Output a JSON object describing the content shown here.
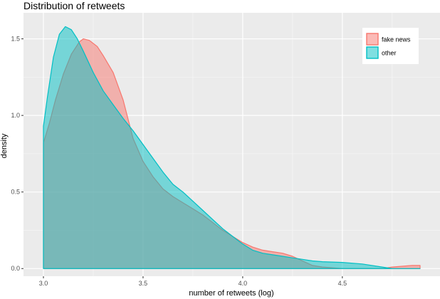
{
  "chart_data": {
    "type": "area",
    "subtype": "density",
    "title": "Distribution of retweets",
    "xlabel": "number of retweets (log)",
    "ylabel": "density",
    "xlim": [
      2.9,
      4.99
    ],
    "ylim": [
      -0.05,
      1.67
    ],
    "x_ticks": [
      3.0,
      3.5,
      4.0,
      4.5
    ],
    "x_tick_labels": [
      "3.0",
      "3.5",
      "4.0",
      "4.5"
    ],
    "y_ticks": [
      0.0,
      0.5,
      1.0,
      1.5
    ],
    "y_tick_labels": [
      "0.0",
      "0.5",
      "1.0",
      "1.5"
    ],
    "grid": true,
    "legend_position": "top-right-inside",
    "series": [
      {
        "name": "fake news",
        "color": "#F8766D",
        "fill": "#F8766D",
        "fill_opacity": 0.5,
        "x": [
          3.0,
          3.03,
          3.06,
          3.1,
          3.14,
          3.18,
          3.2,
          3.23,
          3.27,
          3.3,
          3.35,
          3.4,
          3.45,
          3.5,
          3.55,
          3.6,
          3.65,
          3.7,
          3.75,
          3.8,
          3.85,
          3.9,
          3.95,
          4.0,
          4.05,
          4.1,
          4.15,
          4.2,
          4.25,
          4.3,
          4.35,
          4.4,
          4.5,
          4.6,
          4.7,
          4.75,
          4.8,
          4.85,
          4.89
        ],
        "values": [
          0.82,
          0.95,
          1.1,
          1.27,
          1.4,
          1.48,
          1.5,
          1.49,
          1.45,
          1.39,
          1.28,
          1.1,
          0.85,
          0.7,
          0.6,
          0.52,
          0.47,
          0.43,
          0.39,
          0.35,
          0.3,
          0.25,
          0.21,
          0.17,
          0.14,
          0.12,
          0.11,
          0.1,
          0.08,
          0.05,
          0.02,
          0.01,
          0.0,
          0.0,
          0.0,
          0.01,
          0.015,
          0.02,
          0.02
        ]
      },
      {
        "name": "other",
        "color": "#00BFC4",
        "fill": "#00BFC4",
        "fill_opacity": 0.5,
        "x": [
          3.0,
          3.02,
          3.05,
          3.08,
          3.11,
          3.14,
          3.17,
          3.2,
          3.25,
          3.3,
          3.35,
          3.4,
          3.45,
          3.5,
          3.55,
          3.6,
          3.65,
          3.7,
          3.75,
          3.8,
          3.85,
          3.9,
          3.95,
          4.0,
          4.05,
          4.1,
          4.15,
          4.2,
          4.25,
          4.3,
          4.35,
          4.4,
          4.5,
          4.6,
          4.7,
          4.75,
          4.8,
          4.85,
          4.89
        ],
        "values": [
          0.93,
          1.12,
          1.38,
          1.53,
          1.58,
          1.56,
          1.5,
          1.42,
          1.28,
          1.16,
          1.07,
          0.98,
          0.9,
          0.81,
          0.72,
          0.63,
          0.55,
          0.5,
          0.44,
          0.38,
          0.32,
          0.26,
          0.21,
          0.16,
          0.12,
          0.1,
          0.09,
          0.08,
          0.07,
          0.06,
          0.05,
          0.045,
          0.04,
          0.03,
          0.01,
          0.0,
          0.0,
          0.0,
          0.0
        ]
      }
    ]
  },
  "legend": {
    "items": [
      {
        "label": "fake news",
        "color": "#F8766D"
      },
      {
        "label": "other",
        "color": "#00BFC4"
      }
    ]
  },
  "theme": {
    "panel_bg": "#EBEBEB",
    "grid_major": "#FFFFFF",
    "grid_minor": "#F5F5F5"
  }
}
